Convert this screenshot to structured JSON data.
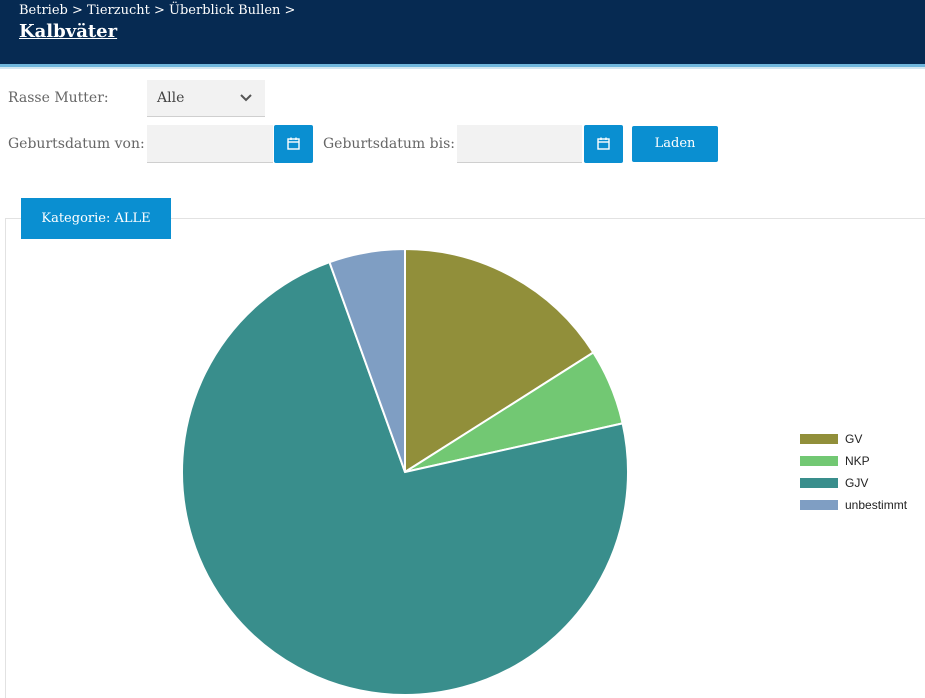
{
  "header": {
    "breadcrumb": "Betrieb > Tierzucht > Überblick Bullen >",
    "title": "Kalbväter"
  },
  "filters": {
    "rasse_label": "Rasse Mutter:",
    "rasse_value": "Alle",
    "date_from_label": "Geburtsdatum von:",
    "date_from_value": "",
    "date_to_label": "Geburtsdatum bis:",
    "date_to_value": "",
    "load_label": "Laden"
  },
  "tab": {
    "label": "Kategorie: ALLE"
  },
  "icons": {
    "dropdown": "chevron-down-icon",
    "calendar": "calendar-icon"
  },
  "colors": {
    "header": "#062a52",
    "accent": "#0a8fd1"
  },
  "chart_data": {
    "type": "pie",
    "categories": [
      "GV",
      "NKP",
      "GJV",
      "unbestimmt"
    ],
    "values": [
      16,
      5.5,
      73,
      5.5
    ],
    "colors": [
      "#918f3a",
      "#72c873",
      "#398e8c",
      "#7f9ec3"
    ],
    "legend": "right"
  }
}
